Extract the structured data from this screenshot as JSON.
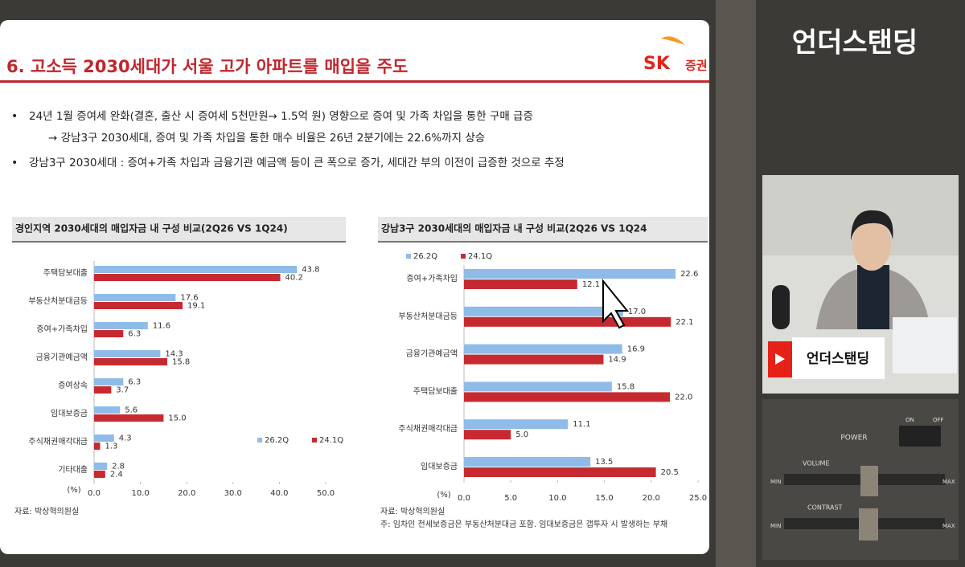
{
  "slide": {
    "title": "6. 고소득 2030세대가 서울 고가 아파트를 매입을 주도",
    "logo": "SK",
    "logo_sub": "증권",
    "bullets": [
      "24년 1월 증여세 완화(결혼, 출산 시 증여세 5천만원→ 1.5억 원) 영향으로 증여 및 가족 차입을 통한 구매 급증",
      "→ 강남3구 2030세대, 증여 및 가족 차입을 통한 매수 비율은 26년 2분기에는 22.6%까지 상승",
      "강남3구 2030세대 : 증여+가족 차입과 금융기관 예금액 등이 큰 폭으로 증가, 세대간 부의 이전이 급증한 것으로 추정"
    ]
  },
  "chart_data": [
    {
      "type": "hbar",
      "title": "경인지역 2030세대의 매입자금 내 구성 비교(2Q26 VS 1Q24)",
      "categories": [
        "주택담보대출",
        "부동산처분대금등",
        "증여+가족차입",
        "금융기관예금액",
        "증여상속",
        "임대보증금",
        "주식채권매각대금",
        "기타대출"
      ],
      "series": [
        {
          "name": "26.2Q",
          "color": "#8fbbe8",
          "values": [
            43.8,
            17.6,
            11.6,
            14.3,
            6.3,
            5.6,
            4.3,
            2.8
          ]
        },
        {
          "name": "24.1Q",
          "color": "#c62a30",
          "values": [
            40.2,
            19.1,
            6.3,
            15.8,
            3.7,
            15.0,
            1.3,
            2.4
          ],
          "value_labels": [
            "40.2",
            "19.1",
            "6.3",
            "15.8",
            "3.7",
            "15.0",
            "1.3",
            "2.4"
          ]
        }
      ],
      "xlim": [
        0,
        50
      ],
      "xticks": [
        {
          "value": 0,
          "label": "0.0"
        },
        {
          "value": 10,
          "label": "10.0"
        },
        {
          "value": 20,
          "label": "20.0"
        },
        {
          "value": 30,
          "label": "30.0"
        },
        {
          "value": 40,
          "label": "40.0"
        },
        {
          "value": 50,
          "label": "50.0"
        }
      ],
      "x_label": "(%)",
      "legend": "lower right",
      "source": "자료: 박상혁의원실"
    },
    {
      "type": "hbar",
      "title": "강남3구 2030세대의 매입자금 내 구성 비교(2Q26 VS 1Q24",
      "categories": [
        "증여+가족차입",
        "부동산처분대금등",
        "금융기관예금액",
        "주택담보대출",
        "주식채권매각대금",
        "임대보증금"
      ],
      "series": [
        {
          "name": "26.2Q",
          "color": "#8fbbe8",
          "values": [
            22.6,
            17.0,
            16.9,
            15.8,
            11.1,
            13.5
          ],
          "value_labels": [
            "22.6",
            "17.0",
            "16.9",
            "15.8",
            "11.1",
            "13.5"
          ]
        },
        {
          "name": "24.1Q",
          "color": "#c62a30",
          "values": [
            12.1,
            22.1,
            14.9,
            22.0,
            5.0,
            20.5
          ],
          "value_labels": [
            "12.1",
            "22.1",
            "14.9",
            "22.0",
            "5.0",
            "20.5"
          ]
        }
      ],
      "xlim": [
        0,
        25
      ],
      "xticks": [
        {
          "value": 0,
          "label": "0.0"
        },
        {
          "value": 5,
          "label": "5.0"
        },
        {
          "value": 10,
          "label": "10.0"
        },
        {
          "value": 15,
          "label": "15.0"
        },
        {
          "value": 20,
          "label": "20.0"
        },
        {
          "value": 25,
          "label": "25.0"
        }
      ],
      "x_label": "(%)",
      "legend": "upper left",
      "source": "자료: 박상혁의원실",
      "note": "주: 임차인 전세보증금은 부동산처분대금 포함. 임대보증금은 갭투자 시 발생하는 부채"
    }
  ],
  "channel": {
    "name": "언더스탠딩",
    "lower_third": "언더스탠딩"
  },
  "panel": {
    "power": "POWER",
    "on": "ON",
    "off": "OFF",
    "volume": "VOLUME",
    "contrast": "CONTRAST",
    "min": "MIN",
    "max": "MAX"
  }
}
